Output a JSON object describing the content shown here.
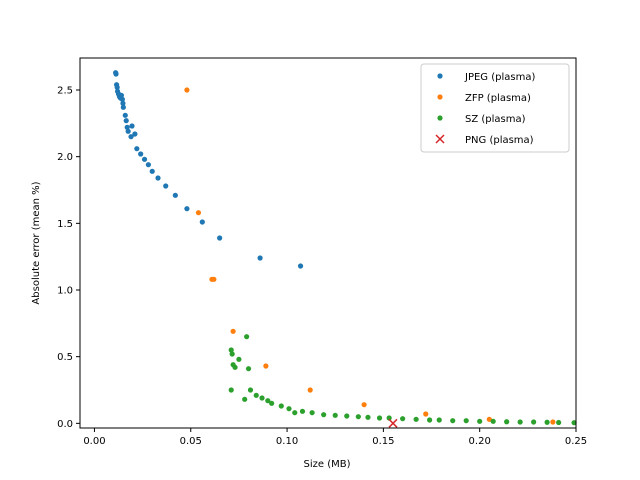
{
  "chart_data": {
    "type": "scatter",
    "title": "",
    "xlabel": "Size (MB)",
    "ylabel": "Absolute error (mean %)",
    "xlim": [
      -0.0075,
      0.25
    ],
    "ylim": [
      -0.035,
      2.74
    ],
    "xticks": [
      0.0,
      0.05,
      0.1,
      0.15,
      0.2,
      0.25
    ],
    "xtick_labels": [
      "0.00",
      "0.05",
      "0.10",
      "0.15",
      "0.20",
      "0.25"
    ],
    "yticks": [
      0.0,
      0.5,
      1.0,
      1.5,
      2.0,
      2.5
    ],
    "ytick_labels": [
      "0.0",
      "0.5",
      "1.0",
      "1.5",
      "2.0",
      "2.5"
    ],
    "grid": false,
    "legend_position": "top-right",
    "series": [
      {
        "name": "JPEG (plasma)",
        "color": "#1f77b4",
        "marker": "dot",
        "points": [
          [
            0.011,
            2.63
          ],
          [
            0.0112,
            2.62
          ],
          [
            0.0115,
            2.54
          ],
          [
            0.0118,
            2.52
          ],
          [
            0.012,
            2.49
          ],
          [
            0.0125,
            2.47
          ],
          [
            0.013,
            2.45
          ],
          [
            0.0135,
            2.44
          ],
          [
            0.014,
            2.46
          ],
          [
            0.0145,
            2.43
          ],
          [
            0.0148,
            2.4
          ],
          [
            0.015,
            2.37
          ],
          [
            0.016,
            2.31
          ],
          [
            0.0165,
            2.27
          ],
          [
            0.017,
            2.22
          ],
          [
            0.0175,
            2.19
          ],
          [
            0.019,
            2.15
          ],
          [
            0.0195,
            2.23
          ],
          [
            0.021,
            2.17
          ],
          [
            0.022,
            2.06
          ],
          [
            0.024,
            2.02
          ],
          [
            0.026,
            1.98
          ],
          [
            0.028,
            1.94
          ],
          [
            0.03,
            1.89
          ],
          [
            0.033,
            1.84
          ],
          [
            0.037,
            1.78
          ],
          [
            0.042,
            1.71
          ],
          [
            0.048,
            1.61
          ],
          [
            0.056,
            1.51
          ],
          [
            0.065,
            1.39
          ],
          [
            0.086,
            1.24
          ],
          [
            0.107,
            1.18
          ]
        ]
      },
      {
        "name": "ZFP (plasma)",
        "color": "#ff7f0e",
        "marker": "dot",
        "points": [
          [
            0.048,
            2.5
          ],
          [
            0.054,
            1.58
          ],
          [
            0.061,
            1.08
          ],
          [
            0.062,
            1.08
          ],
          [
            0.072,
            0.69
          ],
          [
            0.089,
            0.43
          ],
          [
            0.112,
            0.25
          ],
          [
            0.14,
            0.14
          ],
          [
            0.172,
            0.07
          ],
          [
            0.205,
            0.03
          ],
          [
            0.238,
            0.01
          ]
        ]
      },
      {
        "name": "SZ (plasma)",
        "color": "#2ca02c",
        "marker": "dot",
        "points": [
          [
            0.071,
            0.55
          ],
          [
            0.0715,
            0.52
          ],
          [
            0.072,
            0.44
          ],
          [
            0.073,
            0.42
          ],
          [
            0.075,
            0.48
          ],
          [
            0.079,
            0.65
          ],
          [
            0.08,
            0.41
          ],
          [
            0.071,
            0.25
          ],
          [
            0.081,
            0.25
          ],
          [
            0.084,
            0.21
          ],
          [
            0.087,
            0.19
          ],
          [
            0.09,
            0.17
          ],
          [
            0.092,
            0.15
          ],
          [
            0.097,
            0.13
          ],
          [
            0.101,
            0.11
          ],
          [
            0.104,
            0.08
          ],
          [
            0.108,
            0.09
          ],
          [
            0.113,
            0.08
          ],
          [
            0.119,
            0.065
          ],
          [
            0.125,
            0.06
          ],
          [
            0.131,
            0.055
          ],
          [
            0.137,
            0.05
          ],
          [
            0.142,
            0.045
          ],
          [
            0.148,
            0.04
          ],
          [
            0.153,
            0.04
          ],
          [
            0.16,
            0.035
          ],
          [
            0.167,
            0.03
          ],
          [
            0.174,
            0.025
          ],
          [
            0.179,
            0.025
          ],
          [
            0.186,
            0.02
          ],
          [
            0.193,
            0.02
          ],
          [
            0.2,
            0.015
          ],
          [
            0.207,
            0.015
          ],
          [
            0.214,
            0.012
          ],
          [
            0.221,
            0.01
          ],
          [
            0.228,
            0.01
          ],
          [
            0.235,
            0.008
          ],
          [
            0.241,
            0.006
          ],
          [
            0.249,
            0.005
          ],
          [
            0.078,
            0.18
          ]
        ]
      },
      {
        "name": "PNG (plasma)",
        "color": "#d62728",
        "marker": "x",
        "points": [
          [
            0.155,
            0.0
          ]
        ]
      }
    ]
  }
}
